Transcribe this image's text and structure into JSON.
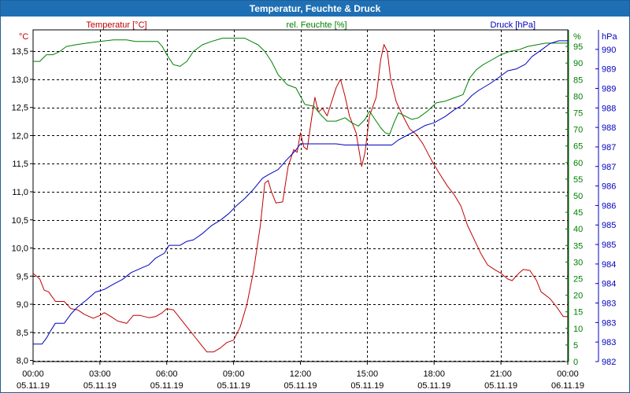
{
  "window": {
    "title": "Temperatur, Feuchte & Druck"
  },
  "chart_data": {
    "type": "line",
    "title": "Temperatur, Feuchte & Druck",
    "x": {
      "unit": "hours since 05.11.19 00:00",
      "range": [
        0,
        24
      ],
      "tick_times": [
        "00:00",
        "03:00",
        "06:00",
        "09:00",
        "12:00",
        "15:00",
        "18:00",
        "21:00",
        "00:00"
      ],
      "tick_dates": [
        "05.11.19",
        "05.11.19",
        "05.11.19",
        "05.11.19",
        "05.11.19",
        "05.11.19",
        "05.11.19",
        "05.11.19",
        "06.11.19"
      ]
    },
    "axes": {
      "temperature": {
        "name": "Temperatur [°C]",
        "unit": "°C",
        "range": [
          7.98,
          13.88
        ],
        "ticks": [
          8.0,
          8.5,
          9.0,
          9.5,
          10.0,
          10.5,
          11.0,
          11.5,
          12.0,
          12.5,
          13.0,
          13.5
        ],
        "tick_labels": [
          "8,0",
          "8,5",
          "9,0",
          "9,5",
          "10,0",
          "10,5",
          "11,0",
          "11,5",
          "12,0",
          "12,5",
          "13,0",
          "13,5"
        ],
        "color": "#c00000"
      },
      "humidity": {
        "name": "rel. Feuchte [%]",
        "unit": "%",
        "range": [
          0,
          100
        ],
        "ticks": [
          0,
          5,
          10,
          15,
          20,
          25,
          30,
          35,
          40,
          45,
          50,
          55,
          60,
          65,
          70,
          75,
          80,
          85,
          90,
          95
        ],
        "tick_labels": [
          "0",
          "5",
          "10",
          "15",
          "20",
          "25",
          "30",
          "35",
          "40",
          "45",
          "50",
          "55",
          "60",
          "65",
          "70",
          "75",
          "80",
          "85",
          "90",
          "95"
        ],
        "color": "#008000"
      },
      "pressure": {
        "name": "Druck [hPa]",
        "unit": "hPa",
        "range": [
          982.0,
          990.5
        ],
        "ticks": [
          982.0,
          982.5,
          983.0,
          983.5,
          984.0,
          984.5,
          985.0,
          985.5,
          986.0,
          986.5,
          987.0,
          987.5,
          988.0,
          988.5,
          989.0,
          989.5,
          990.0
        ],
        "tick_labels": [
          "982",
          "983",
          "983",
          "983",
          "984",
          "984",
          "985",
          "985",
          "986",
          "986",
          "987",
          "987",
          "988",
          "988",
          "989",
          "989",
          "990"
        ],
        "color": "#0000c0"
      }
    },
    "series": [
      {
        "name": "Temperatur [°C]",
        "axis": "temperature",
        "color": "#c00000",
        "points": [
          [
            0,
            9.55
          ],
          [
            0.3,
            9.45
          ],
          [
            0.5,
            9.25
          ],
          [
            0.7,
            9.22
          ],
          [
            1.0,
            9.05
          ],
          [
            1.4,
            9.05
          ],
          [
            1.7,
            8.92
          ],
          [
            2.0,
            8.9
          ],
          [
            2.3,
            8.82
          ],
          [
            2.7,
            8.75
          ],
          [
            3.0,
            8.8
          ],
          [
            3.2,
            8.85
          ],
          [
            3.5,
            8.78
          ],
          [
            3.8,
            8.7
          ],
          [
            4.2,
            8.66
          ],
          [
            4.5,
            8.8
          ],
          [
            4.8,
            8.8
          ],
          [
            5.2,
            8.76
          ],
          [
            5.5,
            8.78
          ],
          [
            5.8,
            8.85
          ],
          [
            6.0,
            8.92
          ],
          [
            6.3,
            8.9
          ],
          [
            6.6,
            8.75
          ],
          [
            7.0,
            8.55
          ],
          [
            7.3,
            8.4
          ],
          [
            7.6,
            8.25
          ],
          [
            7.8,
            8.15
          ],
          [
            8.1,
            8.15
          ],
          [
            8.4,
            8.22
          ],
          [
            8.7,
            8.32
          ],
          [
            9.0,
            8.36
          ],
          [
            9.3,
            8.6
          ],
          [
            9.6,
            9.0
          ],
          [
            9.9,
            9.6
          ],
          [
            10.2,
            10.4
          ],
          [
            10.4,
            11.15
          ],
          [
            10.55,
            11.2
          ],
          [
            10.7,
            11.0
          ],
          [
            10.9,
            10.8
          ],
          [
            11.2,
            10.82
          ],
          [
            11.45,
            11.45
          ],
          [
            11.7,
            11.75
          ],
          [
            11.85,
            11.7
          ],
          [
            12.0,
            12.05
          ],
          [
            12.15,
            11.8
          ],
          [
            12.3,
            11.75
          ],
          [
            12.5,
            12.3
          ],
          [
            12.65,
            12.68
          ],
          [
            12.8,
            12.42
          ],
          [
            13.0,
            12.48
          ],
          [
            13.2,
            12.35
          ],
          [
            13.6,
            12.85
          ],
          [
            13.8,
            13.0
          ],
          [
            14.0,
            12.7
          ],
          [
            14.2,
            12.35
          ],
          [
            14.5,
            12.05
          ],
          [
            14.75,
            11.45
          ],
          [
            14.9,
            11.7
          ],
          [
            15.1,
            12.35
          ],
          [
            15.4,
            12.68
          ],
          [
            15.6,
            13.35
          ],
          [
            15.75,
            13.62
          ],
          [
            15.9,
            13.5
          ],
          [
            16.05,
            13.0
          ],
          [
            16.3,
            12.6
          ],
          [
            16.6,
            12.35
          ],
          [
            16.9,
            12.12
          ],
          [
            17.2,
            12.02
          ],
          [
            17.5,
            11.85
          ],
          [
            17.9,
            11.55
          ],
          [
            18.2,
            11.35
          ],
          [
            18.6,
            11.1
          ],
          [
            18.9,
            10.95
          ],
          [
            19.2,
            10.75
          ],
          [
            19.5,
            10.4
          ],
          [
            19.8,
            10.15
          ],
          [
            20.1,
            9.9
          ],
          [
            20.4,
            9.7
          ],
          [
            20.7,
            9.62
          ],
          [
            21.0,
            9.55
          ],
          [
            21.3,
            9.45
          ],
          [
            21.5,
            9.42
          ],
          [
            21.8,
            9.55
          ],
          [
            22.0,
            9.62
          ],
          [
            22.3,
            9.6
          ],
          [
            22.6,
            9.42
          ],
          [
            22.8,
            9.22
          ],
          [
            23.2,
            9.1
          ],
          [
            23.5,
            8.95
          ],
          [
            23.8,
            8.78
          ],
          [
            24.0,
            8.78
          ]
        ]
      },
      {
        "name": "rel. Feuchte [%]",
        "axis": "humidity",
        "color": "#008000",
        "points": [
          [
            0,
            90.5
          ],
          [
            0.3,
            90.5
          ],
          [
            0.6,
            92.5
          ],
          [
            0.9,
            92.5
          ],
          [
            1.2,
            93.5
          ],
          [
            1.5,
            95.0
          ],
          [
            1.9,
            95.5
          ],
          [
            2.4,
            96.0
          ],
          [
            3.0,
            96.5
          ],
          [
            3.6,
            97.0
          ],
          [
            4.2,
            97.0
          ],
          [
            4.6,
            96.5
          ],
          [
            5.2,
            96.5
          ],
          [
            5.6,
            96.5
          ],
          [
            5.8,
            95.0
          ],
          [
            6.0,
            92.5
          ],
          [
            6.3,
            89.5
          ],
          [
            6.6,
            89.0
          ],
          [
            6.9,
            90.5
          ],
          [
            7.2,
            93.5
          ],
          [
            7.6,
            95.5
          ],
          [
            8.0,
            96.5
          ],
          [
            8.5,
            97.5
          ],
          [
            9.0,
            97.5
          ],
          [
            9.5,
            97.5
          ],
          [
            9.8,
            96.5
          ],
          [
            10.1,
            95.5
          ],
          [
            10.4,
            93.5
          ],
          [
            10.7,
            90.5
          ],
          [
            11.0,
            86.5
          ],
          [
            11.4,
            83.5
          ],
          [
            11.8,
            82.5
          ],
          [
            12.2,
            77.5
          ],
          [
            12.6,
            77.0
          ],
          [
            12.9,
            74.5
          ],
          [
            13.2,
            72.5
          ],
          [
            13.6,
            72.5
          ],
          [
            14.0,
            73.5
          ],
          [
            14.3,
            72.0
          ],
          [
            14.6,
            71.0
          ],
          [
            14.9,
            73.0
          ],
          [
            15.1,
            75.5
          ],
          [
            15.4,
            72.5
          ],
          [
            15.6,
            70.5
          ],
          [
            15.8,
            69.0
          ],
          [
            16.0,
            68.5
          ],
          [
            16.2,
            72.0
          ],
          [
            16.4,
            75.0
          ],
          [
            16.7,
            74.0
          ],
          [
            17.0,
            73.0
          ],
          [
            17.3,
            73.5
          ],
          [
            17.7,
            75.5
          ],
          [
            18.1,
            78.0
          ],
          [
            18.5,
            78.5
          ],
          [
            18.9,
            79.5
          ],
          [
            19.3,
            80.5
          ],
          [
            19.6,
            85.5
          ],
          [
            19.9,
            88.0
          ],
          [
            20.2,
            89.5
          ],
          [
            20.6,
            91.0
          ],
          [
            21.0,
            92.5
          ],
          [
            21.4,
            93.5
          ],
          [
            21.8,
            94.0
          ],
          [
            22.2,
            95.0
          ],
          [
            22.6,
            95.5
          ],
          [
            23.0,
            96.0
          ],
          [
            23.4,
            96.0
          ],
          [
            23.7,
            96.0
          ],
          [
            24.0,
            96.0
          ]
        ]
      },
      {
        "name": "Druck [hPa]",
        "axis": "pressure",
        "color": "#0000c0",
        "points": [
          [
            0,
            982.45
          ],
          [
            0.4,
            982.45
          ],
          [
            0.6,
            982.6
          ],
          [
            0.8,
            982.8
          ],
          [
            1.0,
            982.98
          ],
          [
            1.4,
            982.98
          ],
          [
            1.7,
            983.22
          ],
          [
            2.0,
            983.4
          ],
          [
            2.4,
            983.58
          ],
          [
            2.8,
            983.78
          ],
          [
            3.2,
            983.85
          ],
          [
            3.6,
            983.98
          ],
          [
            4.0,
            984.1
          ],
          [
            4.4,
            984.28
          ],
          [
            4.8,
            984.38
          ],
          [
            5.2,
            984.48
          ],
          [
            5.5,
            984.65
          ],
          [
            5.9,
            984.78
          ],
          [
            6.1,
            984.98
          ],
          [
            6.6,
            984.98
          ],
          [
            6.9,
            985.08
          ],
          [
            7.2,
            985.12
          ],
          [
            7.6,
            985.28
          ],
          [
            8.0,
            985.48
          ],
          [
            8.4,
            985.62
          ],
          [
            8.8,
            985.8
          ],
          [
            9.1,
            985.98
          ],
          [
            9.5,
            986.18
          ],
          [
            9.9,
            986.42
          ],
          [
            10.3,
            986.7
          ],
          [
            10.6,
            986.8
          ],
          [
            11.0,
            986.92
          ],
          [
            11.4,
            987.18
          ],
          [
            11.8,
            987.42
          ],
          [
            12.0,
            987.58
          ],
          [
            12.4,
            987.58
          ],
          [
            13.0,
            987.58
          ],
          [
            13.6,
            987.58
          ],
          [
            14.0,
            987.55
          ],
          [
            14.5,
            987.55
          ],
          [
            15.0,
            987.55
          ],
          [
            15.5,
            987.55
          ],
          [
            16.1,
            987.55
          ],
          [
            16.4,
            987.68
          ],
          [
            16.8,
            987.8
          ],
          [
            17.2,
            987.92
          ],
          [
            17.6,
            988.05
          ],
          [
            18.0,
            988.12
          ],
          [
            18.5,
            988.28
          ],
          [
            18.9,
            988.45
          ],
          [
            19.3,
            988.58
          ],
          [
            19.7,
            988.82
          ],
          [
            20.0,
            988.95
          ],
          [
            20.5,
            989.12
          ],
          [
            20.9,
            989.28
          ],
          [
            21.3,
            989.45
          ],
          [
            21.7,
            989.5
          ],
          [
            22.1,
            989.62
          ],
          [
            22.4,
            989.82
          ],
          [
            22.8,
            989.98
          ],
          [
            23.2,
            990.15
          ],
          [
            23.6,
            990.22
          ],
          [
            24.0,
            990.22
          ]
        ]
      }
    ]
  }
}
